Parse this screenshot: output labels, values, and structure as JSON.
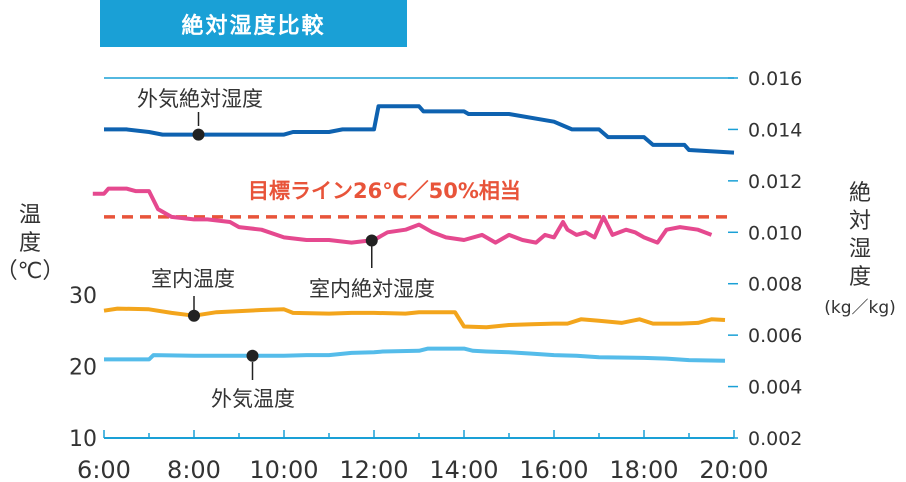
{
  "chart_data": {
    "type": "line",
    "title": "絶対湿度比較",
    "x_ticks": [
      "6:00",
      "8:00",
      "10:00",
      "12:00",
      "14:00",
      "16:00",
      "18:00",
      "20:00"
    ],
    "xlim": [
      6,
      20
    ],
    "left_axis": {
      "label": "温度（℃）",
      "label_chars": [
        "温",
        "度",
        "（℃）"
      ],
      "ticks": [
        "10",
        "20",
        "30"
      ],
      "ylim": [
        10,
        30
      ]
    },
    "right_axis": {
      "label": "絶対湿度(kg／kg)",
      "label_chars": [
        "絶",
        "対",
        "湿",
        "度",
        "(kg／kg)"
      ],
      "ticks": [
        "0.002",
        "0.004",
        "0.006",
        "0.008",
        "0.010",
        "0.012",
        "0.014",
        "0.016"
      ],
      "ylim": [
        0.002,
        0.016
      ]
    },
    "target_line": {
      "label": "目標ライン26℃／50%相当",
      "axis": "right",
      "value": 0.0106,
      "color": "#e8543a"
    },
    "series": [
      {
        "name": "外気絶対湿度",
        "axis": "right",
        "color": "#0e62b0",
        "marker": [
          8.1,
          0.0138
        ],
        "points": [
          [
            6.0,
            0.014
          ],
          [
            6.5,
            0.014
          ],
          [
            7.0,
            0.0139
          ],
          [
            7.3,
            0.0138
          ],
          [
            8.0,
            0.0138
          ],
          [
            9.0,
            0.0138
          ],
          [
            10.0,
            0.0138
          ],
          [
            10.2,
            0.0139
          ],
          [
            11.0,
            0.0139
          ],
          [
            11.3,
            0.014
          ],
          [
            12.0,
            0.014
          ],
          [
            12.1,
            0.0149
          ],
          [
            13.0,
            0.0149
          ],
          [
            13.1,
            0.0147
          ],
          [
            14.0,
            0.0147
          ],
          [
            14.1,
            0.0146
          ],
          [
            15.0,
            0.0146
          ],
          [
            16.0,
            0.0143
          ],
          [
            16.4,
            0.014
          ],
          [
            17.0,
            0.014
          ],
          [
            17.2,
            0.0137
          ],
          [
            18.0,
            0.0137
          ],
          [
            18.2,
            0.0134
          ],
          [
            18.9,
            0.0134
          ],
          [
            19.0,
            0.0132
          ],
          [
            20.0,
            0.0131
          ]
        ]
      },
      {
        "name": "室内絶対湿度",
        "axis": "right",
        "color": "#e5498f",
        "marker": [
          11.95,
          0.00968
        ],
        "points": [
          [
            5.75,
            0.0115
          ],
          [
            6.0,
            0.0115
          ],
          [
            6.1,
            0.0117
          ],
          [
            6.5,
            0.0117
          ],
          [
            6.7,
            0.0116
          ],
          [
            7.0,
            0.0116
          ],
          [
            7.2,
            0.0109
          ],
          [
            7.5,
            0.0106
          ],
          [
            8.0,
            0.0105
          ],
          [
            8.3,
            0.0105
          ],
          [
            8.8,
            0.0104
          ],
          [
            9.0,
            0.0102
          ],
          [
            9.5,
            0.0101
          ],
          [
            10.0,
            0.0098
          ],
          [
            10.5,
            0.0097
          ],
          [
            11.0,
            0.0097
          ],
          [
            11.5,
            0.0096
          ],
          [
            12.0,
            0.0097
          ],
          [
            12.3,
            0.01
          ],
          [
            12.7,
            0.0101
          ],
          [
            13.0,
            0.0103
          ],
          [
            13.3,
            0.01
          ],
          [
            13.6,
            0.0098
          ],
          [
            14.0,
            0.0097
          ],
          [
            14.4,
            0.0099
          ],
          [
            14.7,
            0.0096
          ],
          [
            15.0,
            0.0099
          ],
          [
            15.3,
            0.0097
          ],
          [
            15.6,
            0.0096
          ],
          [
            15.8,
            0.0099
          ],
          [
            16.0,
            0.0098
          ],
          [
            16.2,
            0.0104
          ],
          [
            16.3,
            0.0101
          ],
          [
            16.5,
            0.0099
          ],
          [
            16.7,
            0.01
          ],
          [
            16.9,
            0.0098
          ],
          [
            17.1,
            0.0106
          ],
          [
            17.3,
            0.0099
          ],
          [
            17.6,
            0.0101
          ],
          [
            17.8,
            0.01
          ],
          [
            18.0,
            0.0098
          ],
          [
            18.3,
            0.0096
          ],
          [
            18.5,
            0.0101
          ],
          [
            18.8,
            0.0102
          ],
          [
            19.2,
            0.0101
          ],
          [
            19.5,
            0.0099
          ]
        ]
      },
      {
        "name": "室内温度",
        "axis": "left",
        "color": "#f3a51c",
        "marker": [
          8.0,
          27.1
        ],
        "points": [
          [
            6.0,
            27.8
          ],
          [
            6.3,
            28.1
          ],
          [
            7.0,
            28.0
          ],
          [
            7.5,
            27.5
          ],
          [
            8.0,
            27.1
          ],
          [
            8.5,
            27.6
          ],
          [
            9.5,
            27.9
          ],
          [
            10.0,
            28.0
          ],
          [
            10.2,
            27.5
          ],
          [
            11.0,
            27.4
          ],
          [
            11.5,
            27.5
          ],
          [
            12.0,
            27.5
          ],
          [
            12.7,
            27.4
          ],
          [
            13.0,
            27.6
          ],
          [
            13.8,
            27.6
          ],
          [
            14.0,
            25.6
          ],
          [
            14.5,
            25.5
          ],
          [
            15.0,
            25.8
          ],
          [
            15.5,
            25.9
          ],
          [
            16.0,
            26.0
          ],
          [
            16.3,
            26.0
          ],
          [
            16.6,
            26.6
          ],
          [
            17.0,
            26.4
          ],
          [
            17.5,
            26.1
          ],
          [
            17.9,
            26.6
          ],
          [
            18.2,
            26.0
          ],
          [
            18.8,
            26.0
          ],
          [
            19.2,
            26.1
          ],
          [
            19.5,
            26.6
          ],
          [
            19.8,
            26.5
          ]
        ]
      },
      {
        "name": "外気温度",
        "axis": "left",
        "color": "#55bcea",
        "marker": [
          9.3,
          21.5
        ],
        "points": [
          [
            6.0,
            21.0
          ],
          [
            7.0,
            21.0
          ],
          [
            7.1,
            21.6
          ],
          [
            8.0,
            21.5
          ],
          [
            9.0,
            21.5
          ],
          [
            10.0,
            21.5
          ],
          [
            10.5,
            21.6
          ],
          [
            11.0,
            21.6
          ],
          [
            11.5,
            21.9
          ],
          [
            12.0,
            22.0
          ],
          [
            12.2,
            22.1
          ],
          [
            13.0,
            22.2
          ],
          [
            13.2,
            22.5
          ],
          [
            14.0,
            22.5
          ],
          [
            14.2,
            22.2
          ],
          [
            14.5,
            22.1
          ],
          [
            15.0,
            22.0
          ],
          [
            15.5,
            21.8
          ],
          [
            16.0,
            21.6
          ],
          [
            16.5,
            21.5
          ],
          [
            17.0,
            21.3
          ],
          [
            18.0,
            21.2
          ],
          [
            18.5,
            21.1
          ],
          [
            19.0,
            20.9
          ],
          [
            19.8,
            20.8
          ]
        ]
      }
    ]
  }
}
